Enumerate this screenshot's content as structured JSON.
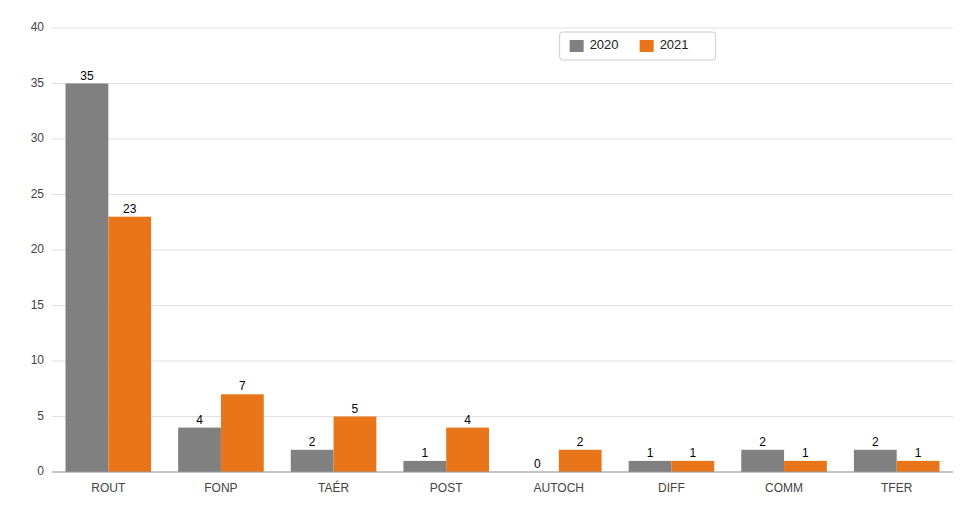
{
  "chart_data": {
    "type": "bar",
    "categories": [
      "ROUT",
      "FONP",
      "TAÉR",
      "POST",
      "AUTOCH",
      "DIFF",
      "COMM",
      "TFER"
    ],
    "series": [
      {
        "name": "2020",
        "color": "#808080",
        "values": [
          35,
          4,
          2,
          1,
          0,
          1,
          2,
          2
        ]
      },
      {
        "name": "2021",
        "color": "#E8751A",
        "values": [
          23,
          7,
          5,
          4,
          2,
          1,
          1,
          1
        ]
      }
    ],
    "ylim": [
      0,
      40
    ],
    "yticks": [
      0,
      5,
      10,
      15,
      20,
      25,
      30,
      35,
      40
    ],
    "grid": true,
    "legend": "top",
    "data_labels": true
  }
}
